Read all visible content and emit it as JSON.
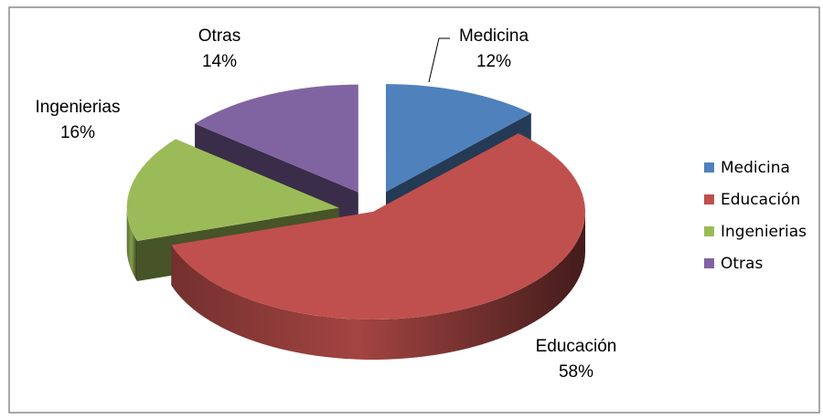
{
  "chart_data": {
    "type": "pie",
    "categories": [
      "Medicina",
      "Educación",
      "Ingenierias",
      "Otras"
    ],
    "values": [
      12,
      58,
      16,
      14
    ],
    "value_labels": [
      "12%",
      "58%",
      "16%",
      "14%"
    ],
    "colors": [
      "#4f81bd",
      "#c0504d",
      "#9bbb59",
      "#8064a2"
    ],
    "legend": "right"
  }
}
